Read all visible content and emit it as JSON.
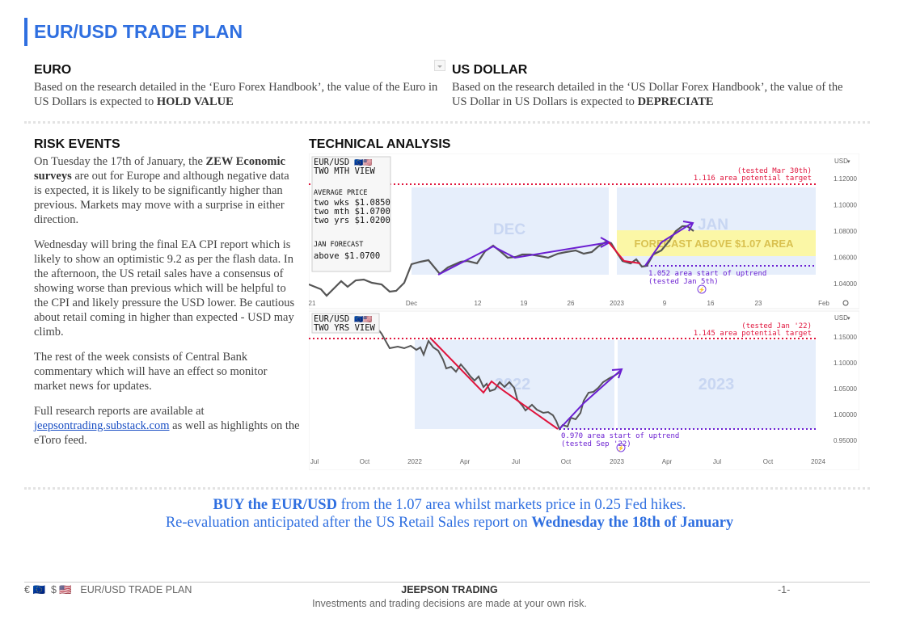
{
  "header": {
    "title": "EUR/USD TRADE PLAN"
  },
  "euro": {
    "heading": "EURO",
    "text_before": "Based on the research detailed in the ‘Euro Forex Handbook’, the value of the Euro in US Dollars is expected to ",
    "outcome": "HOLD VALUE"
  },
  "usd": {
    "heading": "US DOLLAR",
    "text_before": "Based on the research detailed in the ‘US Dollar Forex Handbook’, the value of the US Dollar in US Dollars is expected to ",
    "outcome": "DEPRECIATE"
  },
  "risk": {
    "heading": "RISK EVENTS",
    "p1_a": "On Tuesday the 17th of January, the ",
    "p1_b": "ZEW Economic surveys",
    "p1_c": " are out for Europe and although negative data is expected, it is likely to be significantly higher than previous. Markets may move with a surprise in either direction.",
    "p2": "Wednesday will bring the final EA CPI report which is likely to show an optimistic 9.2 as per the flash data. In the afternoon, the US retail sales have a consensus of showing worse than previous which will be helpful to the CPI and likely pressure the USD lower. Be cautious about retail coming in higher than expected - USD may climb.",
    "p3": "The rest of the week consists of Central Bank commentary which will have an effect so monitor market news for updates.",
    "p4_a": "Full research reports are available at ",
    "p4_link": "jeepsontrading.substack.com",
    "p4_b": " as well as highlights on the eToro feed."
  },
  "ta": {
    "heading": "TECHNICAL ANALYSIS",
    "top": {
      "pair": "EUR/USD",
      "flags": "🇪🇺🇺🇸",
      "view": "TWO MTH VIEW",
      "avg_label": "AVERAGE PRICE",
      "avg1": "two wks $1.0850",
      "avg2": "two mth $1.0700",
      "avg3": "two yrs $1.0200",
      "fc_label": "JAN FORECAST",
      "fc_value": "above $1.0700",
      "target_note": "(tested Mar 30th)",
      "target_label": "1.116 area potential target",
      "support_label": "1.052 area start of uptrend",
      "support_note": "(tested Jan 5th)",
      "period_left": "DEC",
      "period_right": "JAN",
      "forecast_banner": "FORECAST ABOVE $1.07 AREA",
      "currency": "USD",
      "y_ticks": [
        "1.12000",
        "1.10000",
        "1.08000",
        "1.06000",
        "1.04000"
      ],
      "x_ticks": [
        "21",
        "Dec",
        "12",
        "19",
        "26",
        "2023",
        "9",
        "16",
        "23",
        "Feb"
      ]
    },
    "bottom": {
      "pair": "EUR/USD",
      "flags": "🇪🇺🇺🇸",
      "view": "TWO YRS VIEW",
      "target_note": "(tested Jan '22)",
      "target_label": "1.145 area potential target",
      "support_label": "0.970 area start of uptrend",
      "support_note": "(tested Sep '22)",
      "period_left": "2022",
      "period_right": "2023",
      "currency": "USD",
      "y_ticks": [
        "1.15000",
        "1.10000",
        "1.05000",
        "1.00000",
        "0.95000"
      ],
      "x_ticks": [
        "Jul",
        "Oct",
        "2022",
        "Apr",
        "Jul",
        "Oct",
        "2023",
        "Apr",
        "Jul",
        "Oct",
        "2024"
      ]
    }
  },
  "cta": {
    "l1_bold": "BUY the EUR/USD",
    "l1_rest": " from the 1.07 area whilst markets price in 0.25 Fed hikes.",
    "l2_rest": "Re-evaluation anticipated after the US Retail Sales report on ",
    "l2_bold": "Wednesday the 18th of January"
  },
  "footer": {
    "euro_symbol": "€",
    "eu_flag": "🇪🇺",
    "usd_symbol": "$",
    "us_flag": "🇺🇸",
    "doc_title": "EUR/USD TRADE PLAN",
    "brand": "JEEPSON TRADING",
    "disclaimer": "Investments and trading decisions are made at your own risk.",
    "page": "-1-"
  },
  "colors": {
    "accent": "#2f6fe0",
    "red_line": "#e0143c",
    "purple_line": "#6b1fd1",
    "price": "#555555",
    "shade": "#e6eefb",
    "banner": "#fbf7a6"
  }
}
